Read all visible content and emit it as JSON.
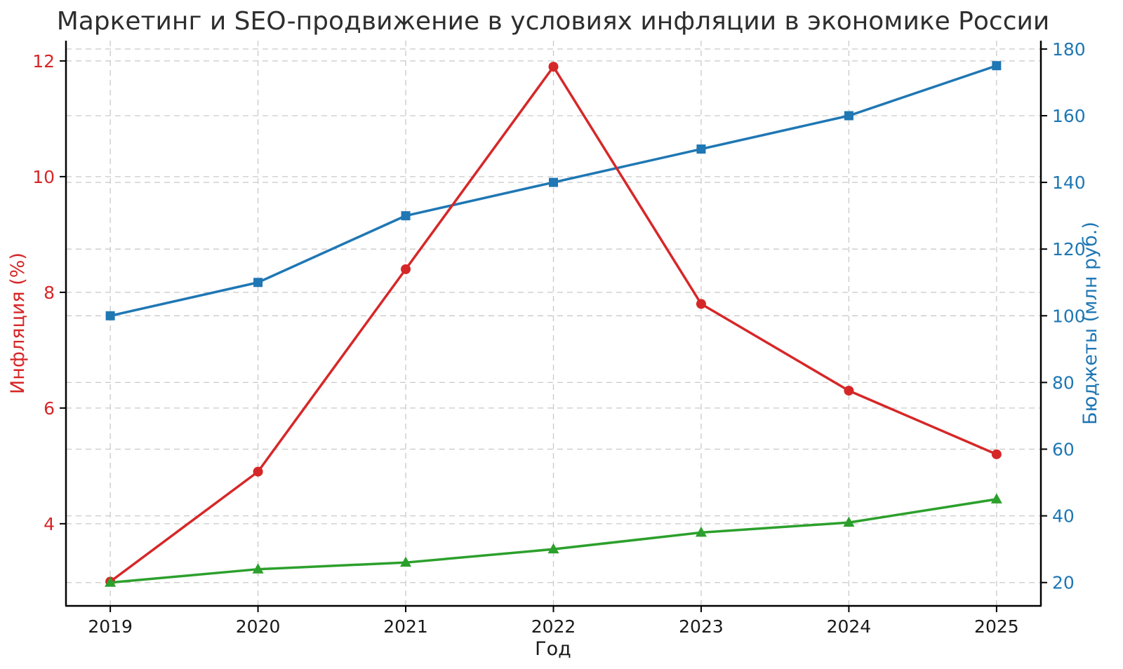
{
  "figure": {
    "background": "#ffffff"
  },
  "chart_data": {
    "type": "line",
    "title": "Маркетинг и SEO-продвижение в условиях инфляции в экономике России",
    "xlabel": "Год",
    "x": [
      2019,
      2020,
      2021,
      2022,
      2023,
      2024,
      2025
    ],
    "xlim": [
      2018.7,
      2025.3
    ],
    "grid": true,
    "grid_style": "dashed",
    "grid_color": "#c9c9c9",
    "legend": "none",
    "spine_color": "#000000",
    "tick_color": "#1a1a1a",
    "title_color": "#2e2e2e",
    "left_axis": {
      "label": "Инфляция (%)",
      "color": "#d62728",
      "ticks": [
        4,
        6,
        8,
        10,
        12
      ],
      "ylim": [
        2.58,
        12.35
      ]
    },
    "right_axis": {
      "label": "Бюджеты (млн руб.)",
      "color": "#1f77b4",
      "ticks": [
        20,
        40,
        60,
        80,
        100,
        120,
        140,
        160,
        180
      ],
      "ylim": [
        13.0,
        182.5
      ]
    },
    "series": [
      {
        "name": "blue-line-budget",
        "axis": "right",
        "color": "#1f77b4",
        "marker": "square",
        "values": [
          100,
          110,
          130,
          140,
          150,
          160,
          175
        ]
      },
      {
        "name": "red-line-inflation",
        "axis": "left",
        "color": "#d62728",
        "marker": "circle",
        "values": [
          3.0,
          4.9,
          8.4,
          11.9,
          7.8,
          6.3,
          5.2
        ]
      },
      {
        "name": "green-line-budget",
        "axis": "right",
        "color": "#2ca02c",
        "marker": "triangle",
        "values": [
          20,
          24,
          26,
          30,
          35,
          38,
          45
        ]
      }
    ]
  }
}
